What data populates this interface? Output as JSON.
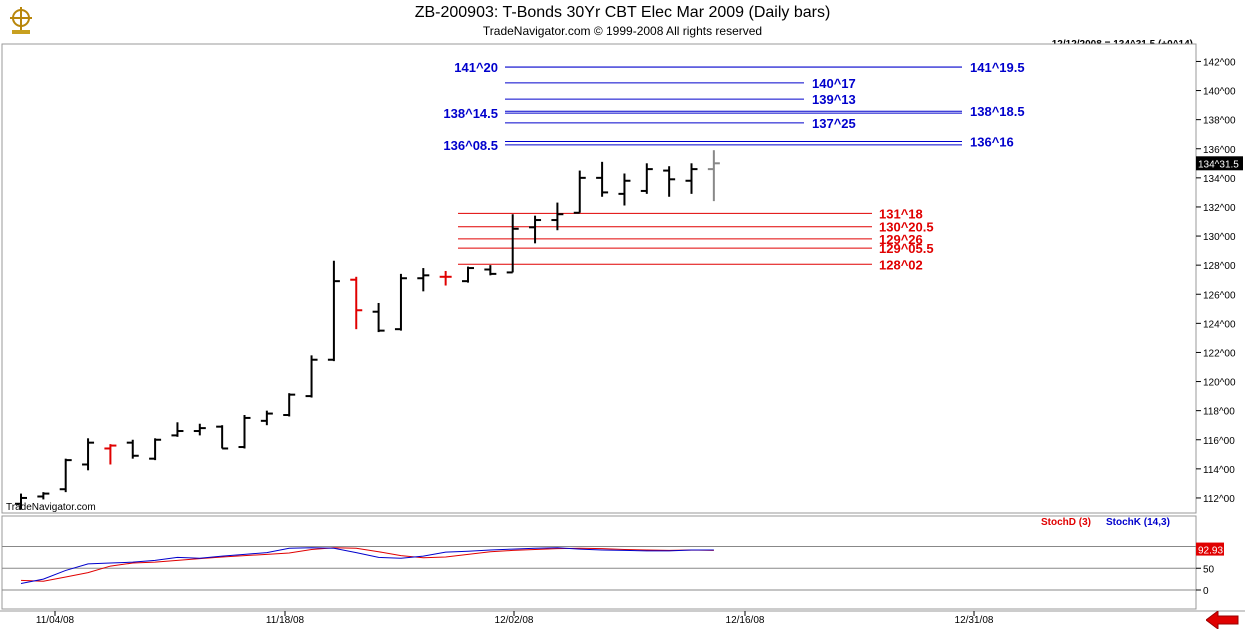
{
  "header": {
    "title": "ZB-200903:  T-Bonds 30Yr CBT Elec Mar 2009  (Daily bars)",
    "subtitle": "TradeNavigator.com © 1999-2008 All rights reserved",
    "last_value_stamp": "12/12/2008 = 134^31.5 (+0^14)",
    "watermark": "TradeNavigator.com"
  },
  "colors": {
    "blue_levels": "#0000cc",
    "red_levels": "#e00000",
    "bar_default": "#000000",
    "bar_down": "#e00000",
    "bar_last": "#888888",
    "stoch_d": "#e00000",
    "stoch_k": "#0000cc",
    "price_tag_bg": "#000000"
  },
  "chart_data": [
    {
      "type": "ohlc",
      "title": "ZB-200903: T-Bonds 30Yr CBT Elec Mar 2009 (Daily bars)",
      "y_ticks": [
        "112^00",
        "114^00",
        "116^00",
        "118^00",
        "120^00",
        "122^00",
        "124^00",
        "126^00",
        "128^00",
        "130^00",
        "132^00",
        "134^00",
        "136^00",
        "138^00",
        "140^00",
        "142^00"
      ],
      "ylim": [
        111,
        143
      ],
      "x_ticks": [
        "11/04/08",
        "11/18/08",
        "12/02/08",
        "12/16/08",
        "12/31/08"
      ],
      "current_price_label": "134^31.5",
      "bars": [
        {
          "o": 111.6,
          "h": 112.3,
          "l": 111.2,
          "c": 112.0
        },
        {
          "o": 112.1,
          "h": 112.4,
          "l": 111.9,
          "c": 112.3
        },
        {
          "o": 112.6,
          "h": 114.7,
          "l": 112.4,
          "c": 114.6
        },
        {
          "o": 114.3,
          "h": 116.1,
          "l": 113.9,
          "c": 115.8
        },
        {
          "o": 115.4,
          "h": 115.7,
          "l": 114.3,
          "c": 115.6,
          "color": "red"
        },
        {
          "o": 115.8,
          "h": 116.0,
          "l": 114.7,
          "c": 114.9
        },
        {
          "o": 114.7,
          "h": 116.1,
          "l": 114.6,
          "c": 116.0
        },
        {
          "o": 116.3,
          "h": 117.2,
          "l": 116.2,
          "c": 116.6
        },
        {
          "o": 116.6,
          "h": 117.1,
          "l": 116.3,
          "c": 116.8
        },
        {
          "o": 116.9,
          "h": 117.0,
          "l": 115.4,
          "c": 115.4
        },
        {
          "o": 115.5,
          "h": 117.7,
          "l": 115.4,
          "c": 117.5
        },
        {
          "o": 117.3,
          "h": 118.0,
          "l": 117.0,
          "c": 117.8
        },
        {
          "o": 117.7,
          "h": 119.2,
          "l": 117.6,
          "c": 119.1
        },
        {
          "o": 119.0,
          "h": 121.8,
          "l": 118.9,
          "c": 121.5
        },
        {
          "o": 121.5,
          "h": 128.3,
          "l": 121.4,
          "c": 126.9
        },
        {
          "o": 127.0,
          "h": 127.2,
          "l": 123.6,
          "c": 124.9,
          "color": "red"
        },
        {
          "o": 124.8,
          "h": 125.4,
          "l": 123.4,
          "c": 123.5
        },
        {
          "o": 123.6,
          "h": 127.4,
          "l": 123.5,
          "c": 127.1
        },
        {
          "o": 127.1,
          "h": 127.8,
          "l": 126.2,
          "c": 127.3
        },
        {
          "o": 127.2,
          "h": 127.6,
          "l": 126.6,
          "c": 127.2,
          "color": "red"
        },
        {
          "o": 126.9,
          "h": 127.9,
          "l": 126.8,
          "c": 127.8
        },
        {
          "o": 127.7,
          "h": 128.0,
          "l": 127.3,
          "c": 127.4
        },
        {
          "o": 127.5,
          "h": 131.5,
          "l": 127.5,
          "c": 130.5
        },
        {
          "o": 130.6,
          "h": 131.4,
          "l": 129.5,
          "c": 131.1
        },
        {
          "o": 131.1,
          "h": 132.3,
          "l": 130.4,
          "c": 131.5
        },
        {
          "o": 131.6,
          "h": 134.5,
          "l": 131.6,
          "c": 134.0
        },
        {
          "o": 134.0,
          "h": 135.1,
          "l": 132.7,
          "c": 133.0
        },
        {
          "o": 132.9,
          "h": 134.3,
          "l": 132.1,
          "c": 133.8
        },
        {
          "o": 133.1,
          "h": 135.0,
          "l": 132.9,
          "c": 134.6
        },
        {
          "o": 134.5,
          "h": 134.8,
          "l": 132.7,
          "c": 133.9
        },
        {
          "o": 133.8,
          "h": 135.0,
          "l": 132.9,
          "c": 134.6
        },
        {
          "o": 134.6,
          "h": 135.9,
          "l": 132.4,
          "c": 135.0,
          "color": "gray"
        }
      ],
      "levels_blue_left": [
        {
          "label": "141^20",
          "value": 141.62
        },
        {
          "label": "138^14.5",
          "value": 138.45
        },
        {
          "label": "136^08.5",
          "value": 136.27
        }
      ],
      "levels_blue_right": [
        {
          "label": "141^19.5",
          "value": 141.61
        },
        {
          "label": "140^17",
          "value": 140.53
        },
        {
          "label": "139^13",
          "value": 139.41
        },
        {
          "label": "138^18.5",
          "value": 138.58
        },
        {
          "label": "137^25",
          "value": 137.78
        },
        {
          "label": "136^16",
          "value": 136.5
        }
      ],
      "levels_red": [
        {
          "label": "131^18",
          "value": 131.56
        },
        {
          "label": "130^20.5",
          "value": 130.64
        },
        {
          "label": "129^26",
          "value": 129.81
        },
        {
          "label": "129^05.5",
          "value": 129.17
        },
        {
          "label": "128^02",
          "value": 128.06
        }
      ]
    },
    {
      "type": "line",
      "indicator": "stochastic",
      "series": [
        {
          "name": "StochD (3)",
          "color": "#e00000",
          "values": [
            22,
            20,
            30,
            40,
            55,
            62,
            64,
            68,
            72,
            76,
            79,
            82,
            85,
            93,
            97,
            96,
            88,
            79,
            74,
            76,
            82,
            88,
            91,
            93,
            95,
            96,
            95,
            93,
            92,
            91,
            92,
            91
          ]
        },
        {
          "name": "StochK (14,3)",
          "color": "#0000cc",
          "values": [
            15,
            25,
            45,
            60,
            62,
            64,
            68,
            75,
            73,
            78,
            82,
            86,
            96,
            97,
            96,
            86,
            75,
            73,
            78,
            87,
            89,
            92,
            94,
            96,
            97,
            94,
            92,
            91,
            90,
            90,
            92,
            92
          ]
        }
      ],
      "y_ticks": [
        "0",
        "50",
        "100"
      ],
      "ylim": [
        0,
        110
      ],
      "current_value_label": "92.93"
    }
  ]
}
